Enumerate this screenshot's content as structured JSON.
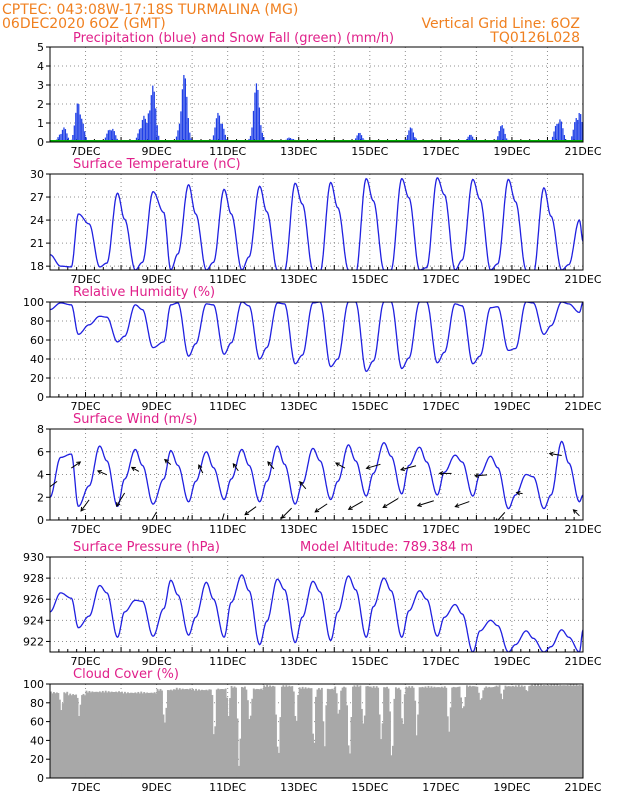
{
  "header": {
    "line1": "CPTEC:   043:08W-17:18S  TURMALINA (MG)",
    "line2": "06DEC2020 6OZ (GMT)",
    "grid_note": "Vertical Grid Line: 6OZ",
    "code": "TQ0126L028"
  },
  "x_labels": [
    "7DEC",
    "9DEC",
    "11DEC",
    "13DEC",
    "15DEC",
    "17DEC",
    "19DEC",
    "21DEC"
  ],
  "x_label_days": [
    7,
    9,
    11,
    13,
    15,
    17,
    19,
    21
  ],
  "colors": {
    "line": "#2020e0",
    "bar": "#1f3fe6",
    "snow": "#00b000",
    "cloud": "#a8a8a8",
    "grid": "#909090",
    "title": "#e0208a",
    "header": "#f08020"
  },
  "chart_data": [
    {
      "type": "bar",
      "title": "Precipitation (blue) and Snow Fall (green) (mm/h)",
      "ylim": [
        0,
        5
      ],
      "yticks": [
        0,
        1,
        2,
        3,
        4,
        5
      ],
      "events": [
        {
          "day": 6.35,
          "peak": 0.9
        },
        {
          "day": 6.8,
          "peak": 2.5
        },
        {
          "day": 7.7,
          "peak": 1.0
        },
        {
          "day": 8.6,
          "peak": 1.6
        },
        {
          "day": 8.85,
          "peak": 3.5
        },
        {
          "day": 9.75,
          "peak": 3.7
        },
        {
          "day": 10.75,
          "peak": 1.9
        },
        {
          "day": 11.8,
          "peak": 3.1
        },
        {
          "day": 12.75,
          "peak": 0.3
        },
        {
          "day": 14.7,
          "peak": 0.5
        },
        {
          "day": 16.15,
          "peak": 0.8
        },
        {
          "day": 17.8,
          "peak": 0.4
        },
        {
          "day": 18.7,
          "peak": 0.9
        },
        {
          "day": 20.3,
          "peak": 1.6
        },
        {
          "day": 20.85,
          "peak": 2.1
        }
      ],
      "snow": 0
    },
    {
      "type": "line",
      "title": "Surface Temperature (nC)",
      "ylim": [
        17.5,
        30
      ],
      "yticks": [
        18,
        21,
        24,
        27,
        30
      ],
      "x": [
        6.0,
        6.3,
        6.6,
        6.8,
        7.1,
        7.4,
        7.6,
        7.9,
        8.1,
        8.4,
        8.6,
        8.9,
        9.2,
        9.4,
        9.6,
        9.9,
        10.1,
        10.4,
        10.6,
        10.9,
        11.1,
        11.4,
        11.6,
        11.9,
        12.1,
        12.4,
        12.6,
        12.9,
        13.1,
        13.4,
        13.6,
        13.9,
        14.1,
        14.4,
        14.6,
        14.9,
        15.1,
        15.4,
        15.6,
        15.9,
        16.1,
        16.4,
        16.6,
        16.9,
        17.1,
        17.4,
        17.6,
        17.9,
        18.1,
        18.4,
        18.6,
        18.9,
        19.1,
        19.4,
        19.6,
        19.9,
        20.1,
        20.4,
        20.6,
        20.9,
        21.0
      ],
      "y": [
        19.5,
        18.0,
        17.9,
        24.8,
        23.5,
        17.9,
        18.4,
        27.5,
        24.1,
        17.5,
        18.5,
        27.7,
        25.0,
        17.5,
        19.6,
        28.6,
        24.8,
        17.5,
        18.5,
        28.0,
        24.8,
        17.5,
        19.2,
        28.4,
        25.1,
        17.5,
        17.4,
        28.8,
        26.1,
        17.5,
        17.2,
        28.9,
        25.6,
        17.5,
        17.0,
        29.4,
        26.5,
        17.5,
        17.5,
        29.4,
        26.9,
        17.5,
        17.8,
        29.5,
        27.3,
        17.5,
        18.8,
        29.3,
        26.7,
        17.5,
        18.3,
        29.3,
        26.4,
        17.5,
        17.0,
        28.2,
        24.5,
        17.5,
        18.2,
        24.0,
        21.2
      ]
    },
    {
      "type": "line",
      "title": "Relative Humidity (%)",
      "ylim": [
        0,
        100
      ],
      "yticks": [
        0,
        20,
        40,
        60,
        80,
        100
      ],
      "x": [
        6.0,
        6.3,
        6.6,
        6.8,
        7.1,
        7.4,
        7.6,
        7.9,
        8.1,
        8.4,
        8.6,
        8.9,
        9.2,
        9.4,
        9.6,
        9.9,
        10.1,
        10.4,
        10.6,
        10.9,
        11.1,
        11.4,
        11.6,
        11.9,
        12.1,
        12.4,
        12.6,
        12.9,
        13.1,
        13.4,
        13.6,
        13.9,
        14.1,
        14.4,
        14.6,
        14.9,
        15.1,
        15.4,
        15.6,
        15.9,
        16.1,
        16.4,
        16.6,
        16.9,
        17.1,
        17.4,
        17.6,
        17.9,
        18.1,
        18.4,
        18.6,
        18.9,
        19.1,
        19.4,
        19.6,
        19.9,
        20.1,
        20.4,
        20.6,
        20.9,
        21.0
      ],
      "y": [
        92,
        99,
        97,
        66,
        76,
        85,
        84,
        58,
        64,
        97,
        92,
        52,
        58,
        97,
        99,
        43,
        56,
        98,
        97,
        45,
        57,
        100,
        96,
        40,
        52,
        99,
        98,
        35,
        44,
        99,
        100,
        32,
        40,
        100,
        100,
        27,
        38,
        100,
        100,
        30,
        41,
        100,
        100,
        36,
        47,
        98,
        96,
        35,
        43,
        94,
        95,
        49,
        51,
        100,
        99,
        66,
        75,
        100,
        98,
        89,
        100
      ]
    },
    {
      "type": "line",
      "title": "Surface Wind (m/s)",
      "ylim": [
        0,
        8
      ],
      "yticks": [
        0,
        2,
        4,
        6,
        8
      ],
      "x": [
        6.0,
        6.3,
        6.6,
        6.8,
        7.1,
        7.4,
        7.6,
        7.9,
        8.1,
        8.4,
        8.6,
        8.9,
        9.2,
        9.4,
        9.6,
        9.9,
        10.1,
        10.4,
        10.6,
        10.9,
        11.1,
        11.4,
        11.6,
        11.9,
        12.1,
        12.4,
        12.6,
        12.9,
        13.1,
        13.4,
        13.6,
        13.9,
        14.1,
        14.4,
        14.6,
        14.9,
        15.1,
        15.4,
        15.6,
        15.9,
        16.1,
        16.4,
        16.6,
        16.9,
        17.1,
        17.4,
        17.6,
        17.9,
        18.1,
        18.4,
        18.6,
        18.9,
        19.1,
        19.4,
        19.6,
        19.9,
        20.1,
        20.4,
        20.6,
        20.9,
        21.0
      ],
      "y": [
        2.0,
        5.5,
        5.8,
        1.2,
        3.0,
        6.5,
        5.2,
        1.2,
        3.6,
        6.2,
        4.8,
        1.4,
        3.6,
        6.1,
        4.8,
        1.6,
        3.4,
        6.0,
        4.6,
        1.8,
        3.6,
        6.2,
        4.8,
        1.6,
        3.4,
        6.5,
        4.9,
        1.4,
        3.2,
        6.3,
        5.2,
        1.8,
        3.4,
        6.6,
        5.2,
        2.1,
        4.1,
        6.8,
        5.6,
        2.3,
        4.8,
        6.4,
        5.1,
        2.2,
        4.2,
        5.7,
        5.1,
        2.1,
        4.0,
        5.6,
        4.6,
        1.0,
        2.2,
        4.0,
        3.8,
        1.0,
        2.2,
        6.9,
        5.0,
        1.6,
        2.2
      ],
      "barbs": [
        {
          "day": 6.2,
          "dx": -12,
          "dy": 9
        },
        {
          "day": 6.6,
          "dx": 9,
          "dy": -6
        },
        {
          "day": 7.1,
          "dx": -8,
          "dy": 11
        },
        {
          "day": 7.6,
          "dx": -9,
          "dy": -4
        },
        {
          "day": 8.1,
          "dx": -8,
          "dy": 13
        },
        {
          "day": 8.5,
          "dx": -7,
          "dy": -4
        },
        {
          "day": 9.0,
          "dx": -7,
          "dy": 12
        },
        {
          "day": 9.4,
          "dx": -6,
          "dy": -5
        },
        {
          "day": 9.9,
          "dx": -3,
          "dy": 13
        },
        {
          "day": 10.3,
          "dx": -4,
          "dy": -8
        },
        {
          "day": 10.9,
          "dx": -4,
          "dy": 14
        },
        {
          "day": 11.3,
          "dx": -5,
          "dy": -7
        },
        {
          "day": 11.8,
          "dx": -11,
          "dy": 8
        },
        {
          "day": 12.3,
          "dx": -6,
          "dy": -7
        },
        {
          "day": 12.8,
          "dx": -10,
          "dy": 10
        },
        {
          "day": 13.2,
          "dx": -6,
          "dy": -7
        },
        {
          "day": 13.8,
          "dx": -12,
          "dy": 8
        },
        {
          "day": 14.3,
          "dx": -9,
          "dy": -5
        },
        {
          "day": 14.8,
          "dx": -14,
          "dy": 8
        },
        {
          "day": 15.3,
          "dx": -14,
          "dy": 4
        },
        {
          "day": 15.8,
          "dx": -15,
          "dy": 9
        },
        {
          "day": 16.3,
          "dx": -15,
          "dy": 4
        },
        {
          "day": 16.8,
          "dx": -16,
          "dy": 5
        },
        {
          "day": 17.3,
          "dx": -12,
          "dy": 0
        },
        {
          "day": 17.8,
          "dx": -14,
          "dy": 5
        },
        {
          "day": 18.3,
          "dx": -12,
          "dy": 1
        },
        {
          "day": 18.8,
          "dx": -9,
          "dy": 10
        },
        {
          "day": 19.3,
          "dx": -6,
          "dy": -1
        },
        {
          "day": 19.9,
          "dx": -13,
          "dy": 9
        },
        {
          "day": 20.4,
          "dx": -12,
          "dy": -2
        },
        {
          "day": 20.9,
          "dx": -6,
          "dy": -6
        }
      ]
    },
    {
      "type": "line",
      "title": "Surface Pressure (hPa)",
      "model_altitude": "Model Altitude: 789.384 m",
      "ylim": [
        921,
        930
      ],
      "yticks": [
        922,
        924,
        926,
        928,
        930
      ],
      "x": [
        6.0,
        6.3,
        6.6,
        6.8,
        7.1,
        7.4,
        7.6,
        7.9,
        8.1,
        8.4,
        8.6,
        8.9,
        9.2,
        9.4,
        9.6,
        9.9,
        10.1,
        10.4,
        10.6,
        10.9,
        11.1,
        11.4,
        11.6,
        11.9,
        12.1,
        12.4,
        12.6,
        12.9,
        13.1,
        13.4,
        13.6,
        13.9,
        14.1,
        14.4,
        14.6,
        14.9,
        15.1,
        15.4,
        15.6,
        15.9,
        16.1,
        16.4,
        16.6,
        16.9,
        17.1,
        17.4,
        17.6,
        17.9,
        18.1,
        18.4,
        18.6,
        18.9,
        19.1,
        19.4,
        19.6,
        19.9,
        20.1,
        20.4,
        20.6,
        20.9,
        21.0
      ],
      "y": [
        924.8,
        926.6,
        926.1,
        923.3,
        924.4,
        927.3,
        926.6,
        922.4,
        924.8,
        925.9,
        925.8,
        922.5,
        925.1,
        927.8,
        926.4,
        922.6,
        924.3,
        927.6,
        926.0,
        922.4,
        925.7,
        928.3,
        926.8,
        921.7,
        923.9,
        927.9,
        926.9,
        921.9,
        924.3,
        927.7,
        926.7,
        922.1,
        924.8,
        928.2,
        926.9,
        922.4,
        925.3,
        928.0,
        926.8,
        922.4,
        924.9,
        926.8,
        926.0,
        922.5,
        924.3,
        925.5,
        924.6,
        921.0,
        923.0,
        924.0,
        923.5,
        921.0,
        921.7,
        923.0,
        922.3,
        921.0,
        921.5,
        923.1,
        922.4,
        921.0,
        923.1
      ]
    },
    {
      "type": "bar",
      "title": "Cloud Cover (%)",
      "ylim": [
        0,
        100
      ],
      "yticks": [
        0,
        20,
        40,
        60,
        80,
        100
      ],
      "base": [
        92,
        90,
        93,
        93,
        92,
        92,
        95,
        96,
        95,
        96,
        98,
        96,
        99,
        99,
        97,
        96,
        98,
        99,
        98,
        97,
        98,
        98,
        98,
        99,
        98,
        99,
        99,
        100,
        100,
        100
      ],
      "dips": [
        {
          "day": 6.3,
          "min": 70
        },
        {
          "day": 6.8,
          "min": 62
        },
        {
          "day": 9.2,
          "min": 56
        },
        {
          "day": 10.6,
          "min": 30
        },
        {
          "day": 11.0,
          "min": 66
        },
        {
          "day": 11.3,
          "min": 3
        },
        {
          "day": 11.6,
          "min": 55
        },
        {
          "day": 12.4,
          "min": 12
        },
        {
          "day": 12.9,
          "min": 50
        },
        {
          "day": 13.4,
          "min": 18
        },
        {
          "day": 13.7,
          "min": 25
        },
        {
          "day": 14.1,
          "min": 60
        },
        {
          "day": 14.4,
          "min": 10
        },
        {
          "day": 14.8,
          "min": 55
        },
        {
          "day": 15.3,
          "min": 36
        },
        {
          "day": 15.6,
          "min": 5
        },
        {
          "day": 15.9,
          "min": 45
        },
        {
          "day": 16.3,
          "min": 38
        },
        {
          "day": 17.2,
          "min": 44
        },
        {
          "day": 17.6,
          "min": 70
        },
        {
          "day": 18.1,
          "min": 80
        },
        {
          "day": 18.7,
          "min": 82
        },
        {
          "day": 19.4,
          "min": 90
        }
      ]
    }
  ]
}
